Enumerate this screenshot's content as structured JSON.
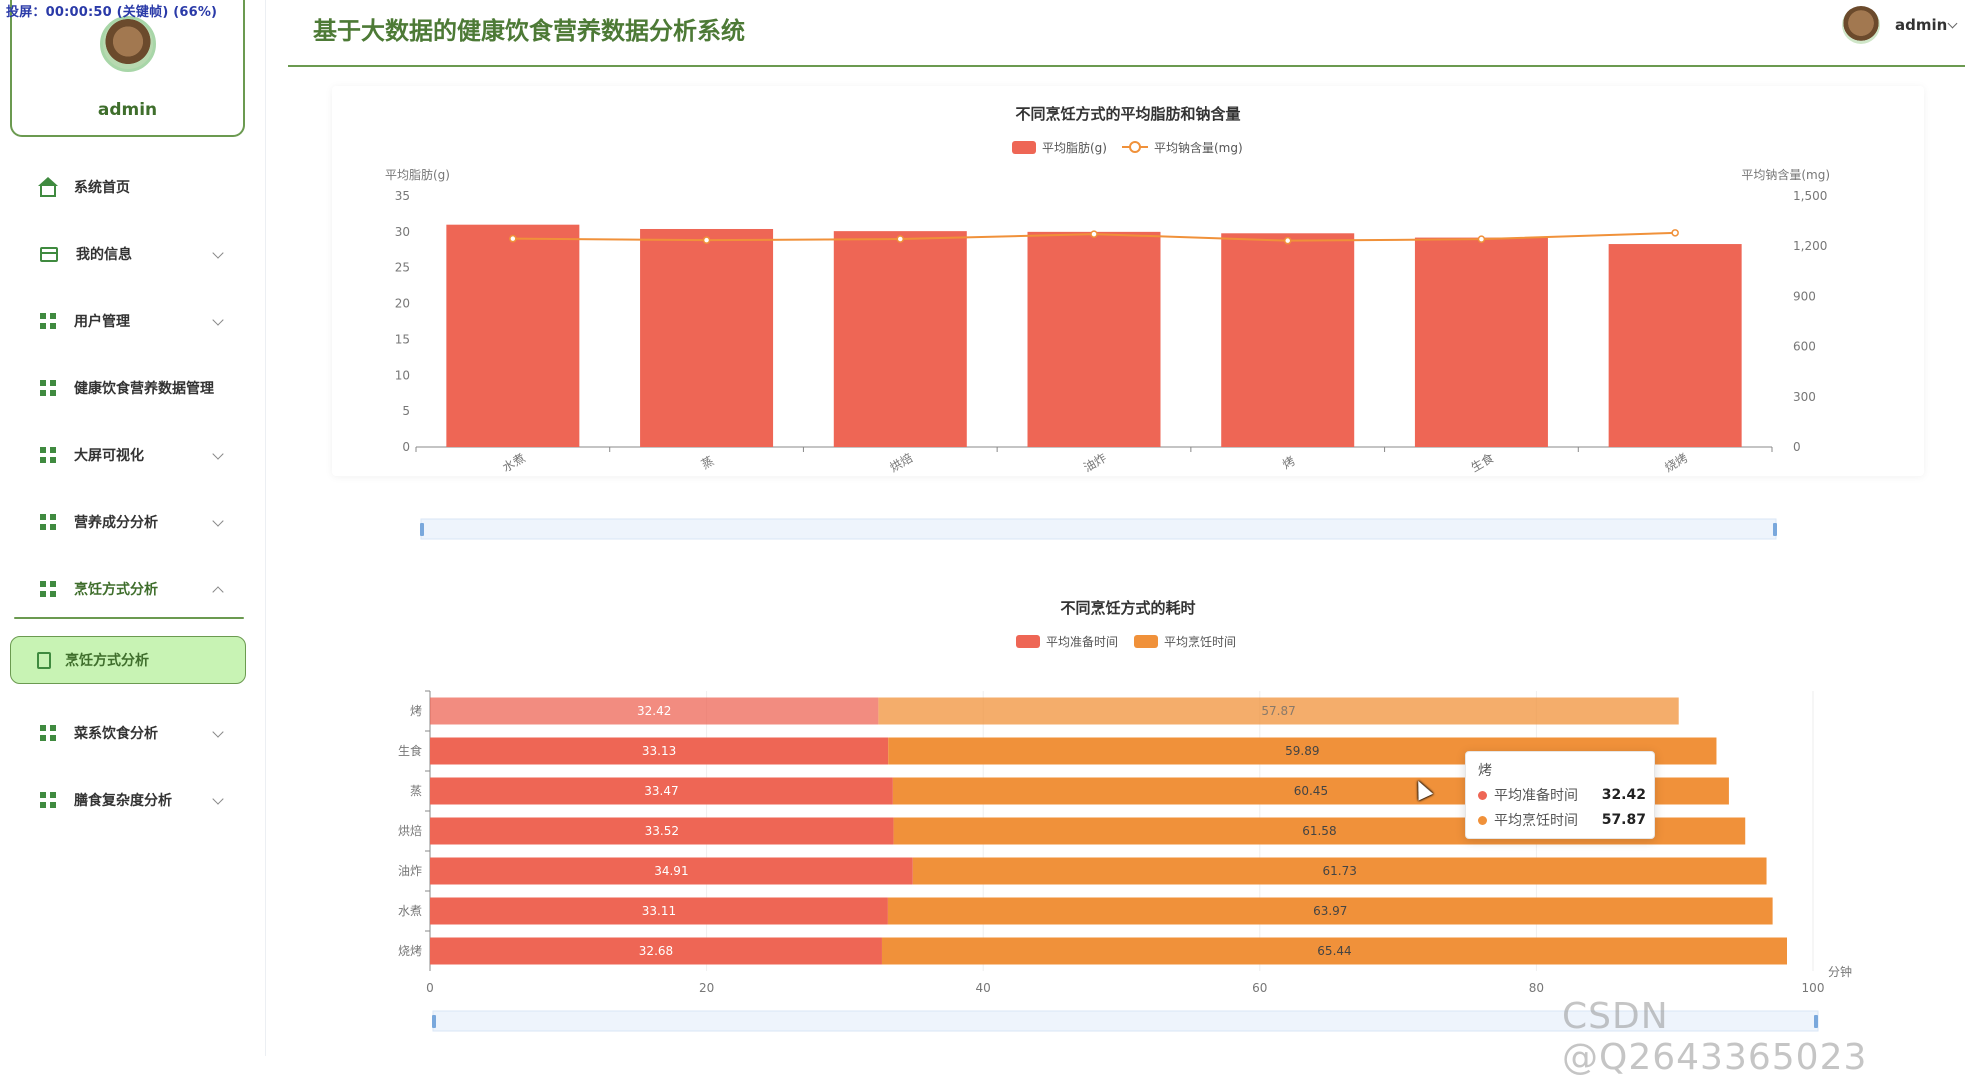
{
  "overlay": {
    "text": "投屏：00:00:50 (关键帧) (66%)"
  },
  "sidebar": {
    "profile_name": "admin",
    "items": [
      {
        "label": "系统首页",
        "icon": "home-icon",
        "chevron": "none"
      },
      {
        "label": "我的信息",
        "icon": "id-card-icon",
        "chevron": "down"
      },
      {
        "label": "用户管理",
        "icon": "grid-icon",
        "chevron": "down"
      },
      {
        "label": "健康饮食营养数据管理",
        "icon": "grid-icon",
        "chevron": "none"
      },
      {
        "label": "大屏可视化",
        "icon": "grid-icon",
        "chevron": "down"
      },
      {
        "label": "营养成分分析",
        "icon": "grid-icon",
        "chevron": "down"
      },
      {
        "label": "烹饪方式分析",
        "icon": "grid-icon",
        "chevron": "up"
      },
      {
        "label": "菜系饮食分析",
        "icon": "grid-icon",
        "chevron": "down"
      },
      {
        "label": "膳食复杂度分析",
        "icon": "grid-icon",
        "chevron": "down"
      }
    ],
    "active_submenu": {
      "label": "烹饪方式分析",
      "icon": "document-icon"
    }
  },
  "header": {
    "title": "基于大数据的健康饮食营养数据分析系统",
    "user_name": "admin"
  },
  "colors": {
    "accent": "#4d7a36",
    "bar_red": "#ee6655",
    "line_orange": "#f0913a",
    "stack_red": "#ee6655",
    "stack_orange": "#f0913a"
  },
  "chart_data": [
    {
      "type": "bar",
      "title": "不同烹饪方式的平均脂肪和钠含量",
      "categories": [
        "水煮",
        "蒸",
        "烘焙",
        "油炸",
        "烤",
        "生食",
        "烧烤"
      ],
      "ylabel": "平均脂肪(g)",
      "y2label": "平均钠含量(mg)",
      "ylim": [
        0,
        35
      ],
      "y_ticks": [
        0,
        5,
        10,
        15,
        20,
        25,
        30,
        35
      ],
      "y2lim": [
        0,
        1500
      ],
      "y2_ticks": [
        "0",
        "300",
        "600",
        "900",
        "1,200",
        "1,500"
      ],
      "legend_position": "top-center",
      "series": [
        {
          "name": "平均脂肪(g)",
          "kind": "bar",
          "axis": "left",
          "values": [
            31.0,
            30.4,
            30.1,
            30.0,
            29.8,
            29.2,
            28.3
          ]
        },
        {
          "name": "平均钠含量(mg)",
          "kind": "line",
          "axis": "right",
          "values": [
            1245,
            1236,
            1243,
            1272,
            1233,
            1242,
            1280
          ]
        }
      ],
      "has_zoom_slider": true
    },
    {
      "type": "bar",
      "orientation": "horizontal",
      "stacked": true,
      "title": "不同烹饪方式的耗时",
      "categories": [
        "烤",
        "生食",
        "蒸",
        "烘焙",
        "油炸",
        "水煮",
        "烧烤"
      ],
      "xlabel": "分钟",
      "xlim": [
        0,
        100
      ],
      "x_ticks": [
        0,
        20,
        40,
        60,
        80,
        100
      ],
      "legend_position": "top-center",
      "series": [
        {
          "name": "平均准备时间",
          "values": [
            32.42,
            33.13,
            33.47,
            33.52,
            34.91,
            33.11,
            32.68
          ]
        },
        {
          "name": "平均烹饪时间",
          "values": [
            57.87,
            59.89,
            60.45,
            61.58,
            61.73,
            63.97,
            65.44
          ]
        }
      ],
      "highlighted_category": "烤",
      "has_zoom_slider": true
    }
  ],
  "tooltip": {
    "title": "烤",
    "rows": [
      {
        "label": "平均准备时间",
        "value": "32.42"
      },
      {
        "label": "平均烹饪时间",
        "value": "57.87"
      }
    ]
  },
  "watermark": "CSDN @Q2643365023"
}
